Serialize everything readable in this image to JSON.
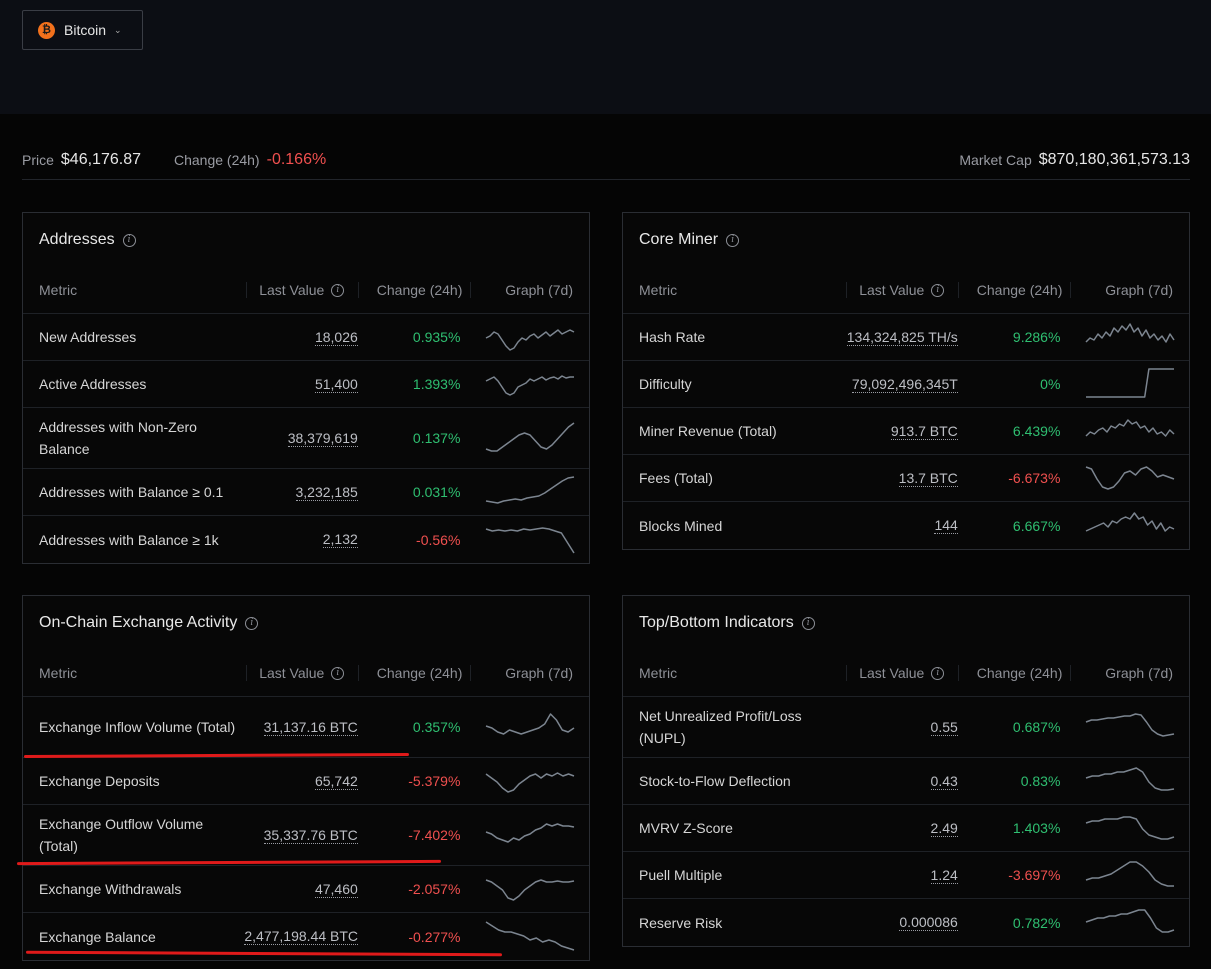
{
  "asset": {
    "name": "Bitcoin",
    "logo_glyph": "₿"
  },
  "price": {
    "label": "Price",
    "value": "$46,176.87"
  },
  "change": {
    "label": "Change (24h)",
    "value": "-0.166%"
  },
  "market_cap": {
    "label": "Market Cap",
    "value": "$870,180,361,573.13"
  },
  "headers": {
    "metric": "Metric",
    "last": "Last Value",
    "change": "Change (24h)",
    "graph": "Graph (7d)"
  },
  "colors": {
    "positive": "#2fbf71",
    "negative": "#f0504f",
    "spark": "#7c8590",
    "annotation": "#e01a1a"
  },
  "cards": {
    "addresses": {
      "title": "Addresses",
      "rows": [
        {
          "metric": "New Addresses",
          "last": "18,026",
          "change": "0.935%",
          "dir": "pos"
        },
        {
          "metric": "Active Addresses",
          "last": "51,400",
          "change": "1.393%",
          "dir": "pos"
        },
        {
          "metric": "Addresses with Non-Zero Balance",
          "last": "38,379,619",
          "change": "0.137%",
          "dir": "pos"
        },
        {
          "metric": "Addresses with Balance ≥ 0.1",
          "last": "3,232,185",
          "change": "0.031%",
          "dir": "pos"
        },
        {
          "metric": "Addresses with Balance ≥ 1k",
          "last": "2,132",
          "change": "-0.56%",
          "dir": "neg"
        }
      ]
    },
    "core_miner": {
      "title": "Core Miner",
      "rows": [
        {
          "metric": "Hash Rate",
          "last": "134,324,825 TH/s",
          "change": "9.286%",
          "dir": "pos"
        },
        {
          "metric": "Difficulty",
          "last": "79,092,496,345T",
          "change": "0%",
          "dir": "pos"
        },
        {
          "metric": "Miner Revenue (Total)",
          "last": "913.7 BTC",
          "change": "6.439%",
          "dir": "pos"
        },
        {
          "metric": "Fees (Total)",
          "last": "13.7 BTC",
          "change": "-6.673%",
          "dir": "neg"
        },
        {
          "metric": "Blocks Mined",
          "last": "144",
          "change": "6.667%",
          "dir": "pos"
        }
      ]
    },
    "exchange": {
      "title": "On-Chain Exchange Activity",
      "rows": [
        {
          "metric": "Exchange Inflow Volume (Total)",
          "last": "31,137.16 BTC",
          "change": "0.357%",
          "dir": "pos"
        },
        {
          "metric": "Exchange Deposits",
          "last": "65,742",
          "change": "-5.379%",
          "dir": "neg"
        },
        {
          "metric": "Exchange Outflow Volume (Total)",
          "last": "35,337.76 BTC",
          "change": "-7.402%",
          "dir": "neg"
        },
        {
          "metric": "Exchange Withdrawals",
          "last": "47,460",
          "change": "-2.057%",
          "dir": "neg"
        },
        {
          "metric": "Exchange Balance",
          "last": "2,477,198.44 BTC",
          "change": "-0.277%",
          "dir": "neg"
        }
      ]
    },
    "indicators": {
      "title": "Top/Bottom Indicators",
      "rows": [
        {
          "metric": "Net Unrealized Profit/Loss (NUPL)",
          "last": "0.55",
          "change": "0.687%",
          "dir": "pos"
        },
        {
          "metric": "Stock-to-Flow Deflection",
          "last": "0.43",
          "change": "0.83%",
          "dir": "pos"
        },
        {
          "metric": "MVRV Z-Score",
          "last": "2.49",
          "change": "1.403%",
          "dir": "pos"
        },
        {
          "metric": "Puell Multiple",
          "last": "1.24",
          "change": "-3.697%",
          "dir": "neg"
        },
        {
          "metric": "Reserve Risk",
          "last": "0.000086",
          "change": "0.782%",
          "dir": "pos"
        }
      ]
    }
  }
}
